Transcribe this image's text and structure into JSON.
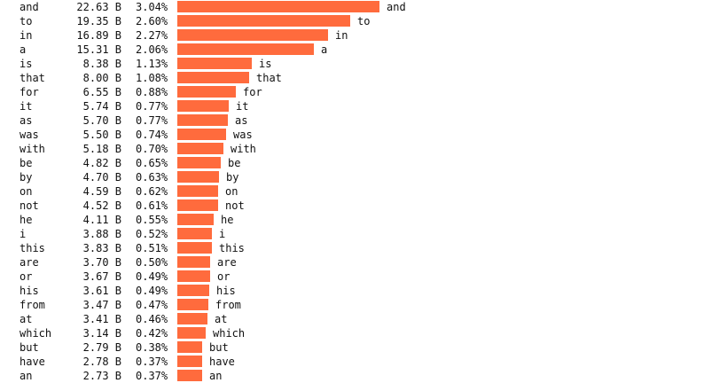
{
  "chart_data": {
    "type": "bar",
    "orientation": "horizontal",
    "unit": "B",
    "bar_color": "#ff6b3d",
    "rows": [
      {
        "word": "and",
        "value": 22.63,
        "value_text": "22.63 B",
        "percent": "3.04%"
      },
      {
        "word": "to",
        "value": 19.35,
        "value_text": "19.35 B",
        "percent": "2.60%"
      },
      {
        "word": "in",
        "value": 16.89,
        "value_text": "16.89 B",
        "percent": "2.27%"
      },
      {
        "word": "a",
        "value": 15.31,
        "value_text": "15.31 B",
        "percent": "2.06%"
      },
      {
        "word": "is",
        "value": 8.38,
        "value_text": "8.38 B",
        "percent": "1.13%"
      },
      {
        "word": "that",
        "value": 8.0,
        "value_text": "8.00 B",
        "percent": "1.08%"
      },
      {
        "word": "for",
        "value": 6.55,
        "value_text": "6.55 B",
        "percent": "0.88%"
      },
      {
        "word": "it",
        "value": 5.74,
        "value_text": "5.74 B",
        "percent": "0.77%"
      },
      {
        "word": "as",
        "value": 5.7,
        "value_text": "5.70 B",
        "percent": "0.77%"
      },
      {
        "word": "was",
        "value": 5.5,
        "value_text": "5.50 B",
        "percent": "0.74%"
      },
      {
        "word": "with",
        "value": 5.18,
        "value_text": "5.18 B",
        "percent": "0.70%"
      },
      {
        "word": "be",
        "value": 4.82,
        "value_text": "4.82 B",
        "percent": "0.65%"
      },
      {
        "word": "by",
        "value": 4.7,
        "value_text": "4.70 B",
        "percent": "0.63%"
      },
      {
        "word": "on",
        "value": 4.59,
        "value_text": "4.59 B",
        "percent": "0.62%"
      },
      {
        "word": "not",
        "value": 4.52,
        "value_text": "4.52 B",
        "percent": "0.61%"
      },
      {
        "word": "he",
        "value": 4.11,
        "value_text": "4.11 B",
        "percent": "0.55%"
      },
      {
        "word": "i",
        "value": 3.88,
        "value_text": "3.88 B",
        "percent": "0.52%"
      },
      {
        "word": "this",
        "value": 3.83,
        "value_text": "3.83 B",
        "percent": "0.51%"
      },
      {
        "word": "are",
        "value": 3.7,
        "value_text": "3.70 B",
        "percent": "0.50%"
      },
      {
        "word": "or",
        "value": 3.67,
        "value_text": "3.67 B",
        "percent": "0.49%"
      },
      {
        "word": "his",
        "value": 3.61,
        "value_text": "3.61 B",
        "percent": "0.49%"
      },
      {
        "word": "from",
        "value": 3.47,
        "value_text": "3.47 B",
        "percent": "0.47%"
      },
      {
        "word": "at",
        "value": 3.41,
        "value_text": "3.41 B",
        "percent": "0.46%"
      },
      {
        "word": "which",
        "value": 3.14,
        "value_text": "3.14 B",
        "percent": "0.42%"
      },
      {
        "word": "but",
        "value": 2.79,
        "value_text": "2.79 B",
        "percent": "0.38%"
      },
      {
        "word": "have",
        "value": 2.78,
        "value_text": "2.78 B",
        "percent": "0.37%"
      },
      {
        "word": "an",
        "value": 2.73,
        "value_text": "2.73 B",
        "percent": "0.37%"
      }
    ]
  }
}
